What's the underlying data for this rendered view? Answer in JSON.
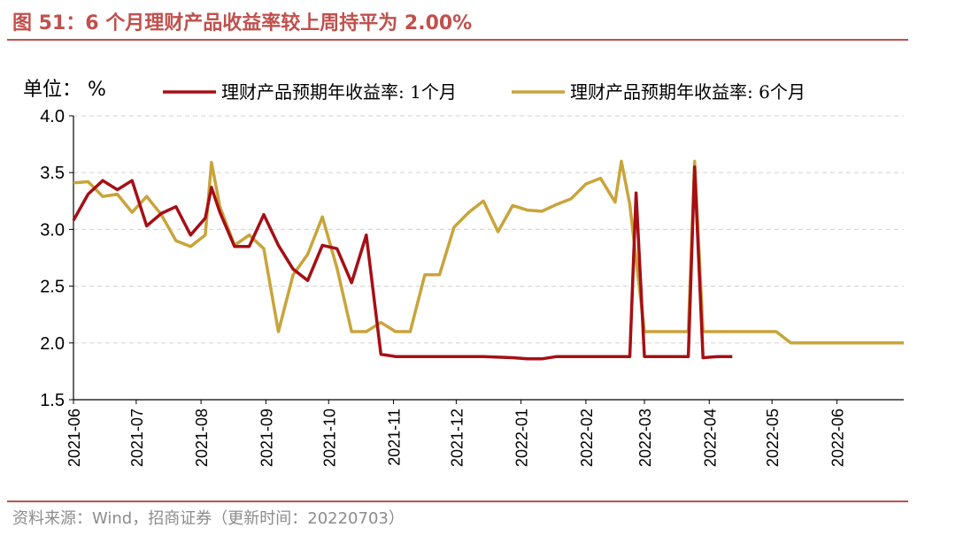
{
  "header": {
    "title": "图 51：6 个月理财产品收益率较上周持平为 2.00%"
  },
  "footer": {
    "source": "资料来源：Wind，招商证券（更新时间：20220703）"
  },
  "colors": {
    "accent": "#c0504d",
    "series_1m": "#a50f15",
    "series_6m": "#c9a43a",
    "grid": "#d9d9d9"
  },
  "chart_data": {
    "type": "line",
    "title": "",
    "unit_label": "单位：  %",
    "ylim": [
      1.5,
      4.0
    ],
    "y_ticks": [
      "1.5",
      "2.0",
      "2.5",
      "3.0",
      "3.5",
      "4.0"
    ],
    "x_ticks": [
      "2021-06",
      "2021-07",
      "2021-08",
      "2021-09",
      "2021-10",
      "2021-11",
      "2021-12",
      "2022-01",
      "2022-02",
      "2022-03",
      "2022-04",
      "2022-05",
      "2022-06"
    ],
    "grid": "horizontal dashed",
    "legend_placement": "top",
    "series": [
      {
        "name": "理财产品预期年收益率: 1个月",
        "color": "#a50f15",
        "points": [
          [
            "2021-06-01",
            3.08
          ],
          [
            "2021-06-08",
            3.31
          ],
          [
            "2021-06-15",
            3.43
          ],
          [
            "2021-06-22",
            3.35
          ],
          [
            "2021-06-29",
            3.43
          ],
          [
            "2021-07-06",
            3.03
          ],
          [
            "2021-07-13",
            3.14
          ],
          [
            "2021-07-20",
            3.2
          ],
          [
            "2021-07-27",
            2.95
          ],
          [
            "2021-08-03",
            3.1
          ],
          [
            "2021-08-06",
            3.37
          ],
          [
            "2021-08-10",
            3.15
          ],
          [
            "2021-08-17",
            2.85
          ],
          [
            "2021-08-24",
            2.85
          ],
          [
            "2021-08-31",
            3.13
          ],
          [
            "2021-09-07",
            2.86
          ],
          [
            "2021-09-14",
            2.65
          ],
          [
            "2021-09-21",
            2.55
          ],
          [
            "2021-09-28",
            2.86
          ],
          [
            "2021-10-05",
            2.83
          ],
          [
            "2021-10-12",
            2.53
          ],
          [
            "2021-10-19",
            2.95
          ],
          [
            "2021-10-26",
            1.9
          ],
          [
            "2021-11-02",
            1.88
          ],
          [
            "2021-11-23",
            1.88
          ],
          [
            "2021-12-14",
            1.88
          ],
          [
            "2021-12-28",
            1.87
          ],
          [
            "2022-01-04",
            1.86
          ],
          [
            "2022-01-11",
            1.86
          ],
          [
            "2022-01-18",
            1.88
          ],
          [
            "2022-02-01",
            1.88
          ],
          [
            "2022-02-15",
            1.88
          ],
          [
            "2022-02-22",
            1.88
          ],
          [
            "2022-02-25",
            3.32
          ],
          [
            "2022-03-01",
            1.88
          ],
          [
            "2022-03-15",
            1.88
          ],
          [
            "2022-03-22",
            1.88
          ],
          [
            "2022-03-25",
            3.55
          ],
          [
            "2022-03-29",
            1.87
          ],
          [
            "2022-04-05",
            1.88
          ],
          [
            "2022-04-12",
            1.88
          ]
        ]
      },
      {
        "name": "理财产品预期年收益率: 6个月",
        "color": "#c9a43a",
        "points": [
          [
            "2021-06-01",
            3.41
          ],
          [
            "2021-06-08",
            3.42
          ],
          [
            "2021-06-15",
            3.29
          ],
          [
            "2021-06-22",
            3.31
          ],
          [
            "2021-06-29",
            3.15
          ],
          [
            "2021-07-06",
            3.29
          ],
          [
            "2021-07-13",
            3.13
          ],
          [
            "2021-07-20",
            2.9
          ],
          [
            "2021-07-27",
            2.85
          ],
          [
            "2021-08-03",
            2.95
          ],
          [
            "2021-08-06",
            3.59
          ],
          [
            "2021-08-10",
            3.2
          ],
          [
            "2021-08-17",
            2.86
          ],
          [
            "2021-08-24",
            2.95
          ],
          [
            "2021-08-31",
            2.83
          ],
          [
            "2021-09-07",
            2.1
          ],
          [
            "2021-09-14",
            2.6
          ],
          [
            "2021-09-21",
            2.78
          ],
          [
            "2021-09-28",
            3.11
          ],
          [
            "2021-10-05",
            2.66
          ],
          [
            "2021-10-12",
            2.1
          ],
          [
            "2021-10-19",
            2.1
          ],
          [
            "2021-10-26",
            2.18
          ],
          [
            "2021-11-02",
            2.1
          ],
          [
            "2021-11-09",
            2.1
          ],
          [
            "2021-11-16",
            2.6
          ],
          [
            "2021-11-23",
            2.6
          ],
          [
            "2021-11-30",
            3.02
          ],
          [
            "2021-12-07",
            3.15
          ],
          [
            "2021-12-14",
            3.25
          ],
          [
            "2021-12-21",
            2.98
          ],
          [
            "2021-12-28",
            3.21
          ],
          [
            "2022-01-04",
            3.17
          ],
          [
            "2022-01-11",
            3.16
          ],
          [
            "2022-01-18",
            3.22
          ],
          [
            "2022-01-25",
            3.27
          ],
          [
            "2022-02-01",
            3.4
          ],
          [
            "2022-02-08",
            3.45
          ],
          [
            "2022-02-15",
            3.24
          ],
          [
            "2022-02-18",
            3.6
          ],
          [
            "2022-02-22",
            3.22
          ],
          [
            "2022-03-01",
            2.1
          ],
          [
            "2022-03-22",
            2.1
          ],
          [
            "2022-03-25",
            3.6
          ],
          [
            "2022-03-29",
            2.1
          ],
          [
            "2022-05-03",
            2.1
          ],
          [
            "2022-05-10",
            2.0
          ],
          [
            "2022-07-03",
            2.0
          ]
        ]
      }
    ]
  }
}
